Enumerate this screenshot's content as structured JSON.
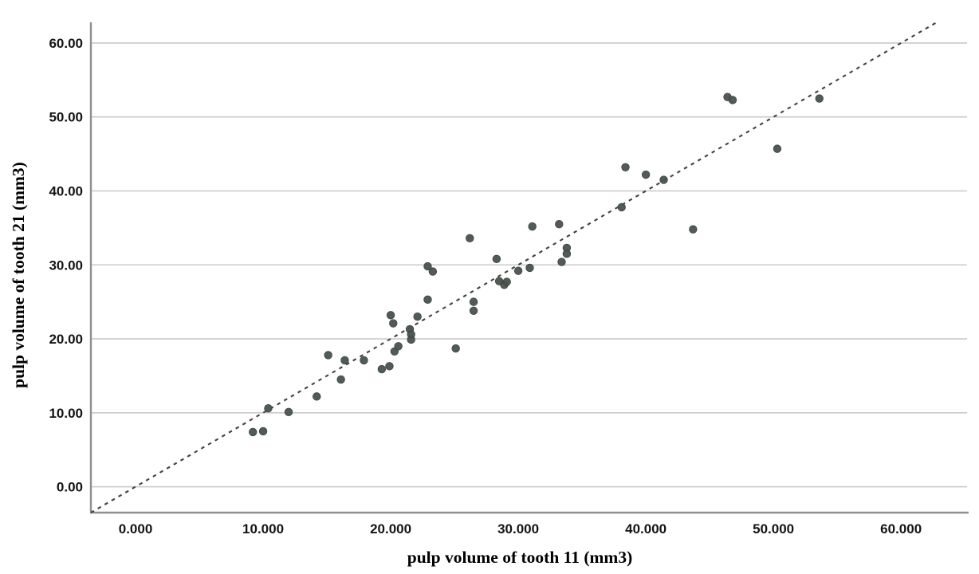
{
  "chart_data": {
    "type": "scatter",
    "title": "",
    "xlabel": "pulp volume of tooth 11 (mm3)",
    "ylabel": "pulp volume of tooth 21 (mm3)",
    "x_ticks": {
      "values": [
        0,
        10,
        20,
        30,
        40,
        50,
        60
      ],
      "labels": [
        "0.000",
        "10.000",
        "20.000",
        "30.000",
        "40.000",
        "50.000",
        "60.000"
      ]
    },
    "y_ticks": {
      "values": [
        0,
        10,
        20,
        30,
        40,
        50,
        60
      ],
      "labels": [
        "0.00",
        "10.00",
        "20.00",
        "30.00",
        "40.00",
        "50.00",
        "60.00"
      ]
    },
    "xlim": [
      -3.5,
      65.3
    ],
    "ylim": [
      -3.5,
      62.8
    ],
    "grid": "horizontal-only",
    "legend": "none",
    "reference_line": {
      "type": "identity",
      "equation": "y = x",
      "style": "dashed",
      "t_start": -3.5,
      "t_end": 62.8
    },
    "points": [
      [
        9.2,
        7.4
      ],
      [
        10.0,
        7.5
      ],
      [
        10.4,
        10.6
      ],
      [
        12.0,
        10.1
      ],
      [
        14.2,
        12.2
      ],
      [
        15.1,
        17.8
      ],
      [
        16.1,
        14.5
      ],
      [
        16.4,
        17.1
      ],
      [
        17.9,
        17.1
      ],
      [
        19.3,
        15.9
      ],
      [
        19.9,
        16.3
      ],
      [
        20.3,
        18.3
      ],
      [
        20.6,
        19.0
      ],
      [
        20.2,
        22.1
      ],
      [
        20.0,
        23.2
      ],
      [
        21.5,
        21.3
      ],
      [
        21.6,
        20.6
      ],
      [
        21.6,
        19.9
      ],
      [
        22.1,
        23.0
      ],
      [
        22.9,
        25.3
      ],
      [
        22.9,
        29.8
      ],
      [
        23.3,
        29.1
      ],
      [
        25.1,
        18.7
      ],
      [
        26.2,
        33.6
      ],
      [
        26.5,
        25.0
      ],
      [
        26.5,
        23.8
      ],
      [
        28.3,
        30.8
      ],
      [
        28.5,
        27.8
      ],
      [
        28.9,
        27.3
      ],
      [
        29.1,
        27.7
      ],
      [
        30.0,
        29.2
      ],
      [
        30.9,
        29.6
      ],
      [
        31.1,
        35.2
      ],
      [
        33.2,
        35.5
      ],
      [
        33.4,
        30.4
      ],
      [
        33.8,
        32.3
      ],
      [
        33.8,
        31.5
      ],
      [
        38.1,
        37.8
      ],
      [
        38.4,
        43.2
      ],
      [
        40.0,
        42.2
      ],
      [
        41.4,
        41.5
      ],
      [
        43.7,
        34.8
      ],
      [
        46.4,
        52.7
      ],
      [
        46.8,
        52.3
      ],
      [
        50.3,
        45.7
      ],
      [
        53.6,
        52.5
      ]
    ],
    "colors": {
      "background": "#ffffff",
      "marker": "#4a524d",
      "marker_stroke": "#3d453f",
      "grid": "#c9c9c9",
      "spine": "#8f8f8f",
      "reference": "#424242",
      "text": "#141414"
    }
  }
}
